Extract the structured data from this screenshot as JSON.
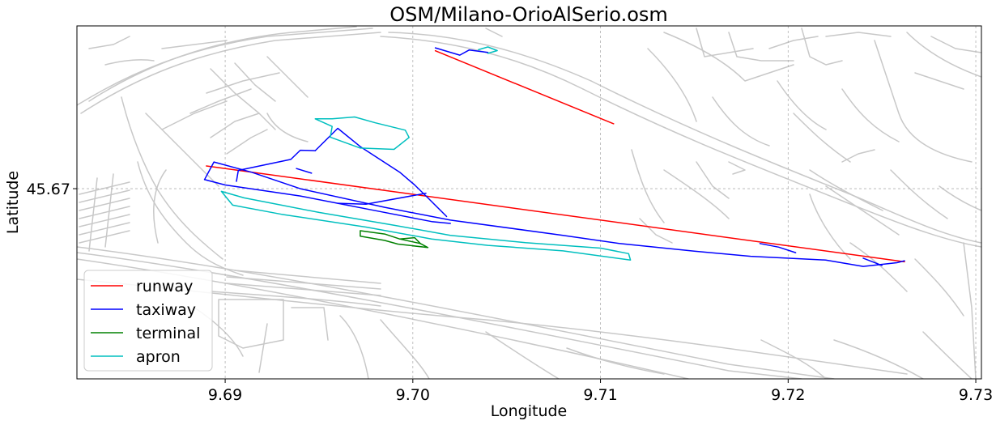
{
  "chart_data": {
    "type": "line",
    "title": "OSM/Milano-OrioAlSerio.osm",
    "xlabel": "Longitude",
    "ylabel": "Latitude",
    "xlim": [
      9.6821,
      9.7303
    ],
    "ylim": [
      45.6596,
      45.6789
    ],
    "xticks": [
      9.69,
      9.7,
      9.71,
      9.72,
      9.73
    ],
    "xtick_labels": [
      "9.69",
      "9.70",
      "9.71",
      "9.72",
      "9.73"
    ],
    "yticks": [
      45.67
    ],
    "ytick_labels": [
      "45.67"
    ],
    "grid": true,
    "legend_position": "lower left",
    "background_color": "#c8c8c8",
    "series": [
      {
        "name": "runway",
        "color": "#ff0000",
        "paths": [
          [
            [
              9.7012,
              45.67754
            ],
            [
              9.7107,
              45.67355
            ]
          ],
          [
            [
              9.689,
              45.67124
            ],
            [
              9.7262,
              45.666
            ]
          ]
        ]
      },
      {
        "name": "taxiway",
        "color": "#0000ff",
        "paths": [
          [
            [
              9.6889,
              45.6705
            ],
            [
              9.6894,
              45.67146
            ],
            [
              9.6914,
              45.6709
            ],
            [
              9.694,
              45.67
            ],
            [
              9.6985,
              45.66898
            ],
            [
              9.702,
              45.66828
            ],
            [
              9.708,
              45.66745
            ],
            [
              9.711,
              45.667
            ],
            [
              9.715,
              45.66658
            ],
            [
              9.718,
              45.6663
            ],
            [
              9.722,
              45.6661
            ],
            [
              9.724,
              45.66575
            ],
            [
              9.7258,
              45.66595
            ],
            [
              9.7262,
              45.66606
            ]
          ],
          [
            [
              9.6889,
              45.6705
            ],
            [
              9.69,
              45.6702
            ],
            [
              9.694,
              45.6696
            ],
            [
              9.698,
              45.6688
            ],
            [
              9.701,
              45.6682
            ],
            [
              9.702,
              45.6681
            ]
          ],
          [
            [
              9.6906,
              45.6704
            ],
            [
              9.6907,
              45.671
            ],
            [
              9.6935,
              45.6716
            ],
            [
              9.694,
              45.6721
            ],
            [
              9.6948,
              45.67208
            ]
          ],
          [
            [
              9.6938,
              45.6711
            ],
            [
              9.6946,
              45.67085
            ]
          ],
          [
            [
              9.6948,
              45.67208
            ],
            [
              9.696,
              45.6733
            ],
            [
              9.6972,
              45.6723
            ],
            [
              9.6993,
              45.6709
            ],
            [
              9.7001,
              45.6702
            ],
            [
              9.7008,
              45.6695
            ],
            [
              9.7018,
              45.66848
            ]
          ],
          [
            [
              9.7007,
              45.66975
            ],
            [
              9.6975,
              45.66915
            ],
            [
              9.696,
              45.6692
            ]
          ],
          [
            [
              9.7185,
              45.667
            ],
            [
              9.7195,
              45.6668
            ],
            [
              9.7204,
              45.6665
            ]
          ],
          [
            [
              9.724,
              45.6662
            ],
            [
              9.725,
              45.6658
            ]
          ],
          [
            [
              9.7012,
              45.6777
            ],
            [
              9.7025,
              45.6773
            ],
            [
              9.703,
              45.67758
            ],
            [
              9.704,
              45.67745
            ]
          ]
        ]
      },
      {
        "name": "terminal",
        "color": "#008000",
        "paths": [
          [
            [
              9.6972,
              45.6677
            ],
            [
              9.6985,
              45.66752
            ],
            [
              9.6993,
              45.66725
            ],
            [
              9.7004,
              45.667
            ],
            [
              9.7008,
              45.66678
            ],
            [
              9.6992,
              45.66697
            ],
            [
              9.6985,
              45.66717
            ],
            [
              9.6972,
              45.6674
            ],
            [
              9.6972,
              45.6677
            ]
          ],
          [
            [
              9.6993,
              45.66725
            ],
            [
              9.7001,
              45.66732
            ],
            [
              9.7004,
              45.667
            ]
          ]
        ]
      },
      {
        "name": "apron",
        "color": "#00bfbf",
        "paths": [
          [
            [
              9.6898,
              45.66985
            ],
            [
              9.691,
              45.6695
            ],
            [
              9.695,
              45.6687
            ],
            [
              9.699,
              45.668
            ],
            [
              9.702,
              45.66745
            ],
            [
              9.706,
              45.66705
            ],
            [
              9.71,
              45.66675
            ],
            [
              9.7115,
              45.66645
            ],
            [
              9.7116,
              45.6661
            ],
            [
              9.708,
              45.6666
            ],
            [
              9.704,
              45.6669
            ],
            [
              9.701,
              45.66725
            ],
            [
              9.6975,
              45.6679
            ],
            [
              9.693,
              45.6686
            ],
            [
              9.6904,
              45.6691
            ],
            [
              9.6898,
              45.66985
            ]
          ],
          [
            [
              9.6957,
              45.67382
            ],
            [
              9.6969,
              45.67392
            ],
            [
              9.698,
              45.6736
            ],
            [
              9.6996,
              45.6732
            ],
            [
              9.6998,
              45.6728
            ],
            [
              9.699,
              45.67215
            ],
            [
              9.6972,
              45.67222
            ],
            [
              9.6956,
              45.67282
            ],
            [
              9.6957,
              45.6734
            ],
            [
              9.6948,
              45.67382
            ],
            [
              9.6957,
              45.67382
            ]
          ],
          [
            [
              9.7035,
              45.6776
            ],
            [
              9.704,
              45.67775
            ],
            [
              9.7045,
              45.67755
            ],
            [
              9.704,
              45.6774
            ]
          ]
        ]
      }
    ]
  }
}
